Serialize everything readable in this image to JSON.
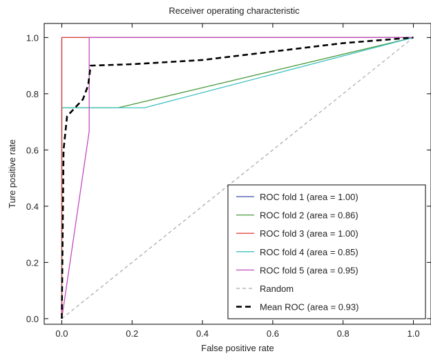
{
  "chart_data": {
    "type": "line",
    "title": "Receiver operating characteristic",
    "xlabel": "False positive rate",
    "ylabel": "Ture positive rate",
    "xlim": [
      -0.05,
      1.05
    ],
    "ylim": [
      -0.02,
      1.05
    ],
    "xticks": [
      "0.0",
      "0.2",
      "0.4",
      "0.6",
      "0.8",
      "1.0"
    ],
    "yticks": [
      "0.0",
      "0.2",
      "0.4",
      "0.6",
      "0.8",
      "1.0"
    ],
    "grid": false,
    "legend_position": "lower-right",
    "series": [
      {
        "name": "ROC fold 1 (area = 1.00)",
        "color": "#3b4ba8",
        "style": "solid",
        "points": [
          [
            0.0,
            0.0
          ],
          [
            0.0,
            1.0
          ],
          [
            1.0,
            1.0
          ]
        ]
      },
      {
        "name": "ROC fold 2 (area = 0.86)",
        "color": "#4a9a3c",
        "style": "solid",
        "points": [
          [
            0.0,
            0.0
          ],
          [
            0.0,
            0.75
          ],
          [
            0.16,
            0.75
          ],
          [
            1.0,
            1.0
          ]
        ]
      },
      {
        "name": "ROC fold 3 (area = 1.00)",
        "color": "#e8473c",
        "style": "solid",
        "points": [
          [
            0.0,
            0.0
          ],
          [
            0.0,
            1.0
          ],
          [
            0.08,
            1.0
          ],
          [
            1.0,
            1.0
          ]
        ]
      },
      {
        "name": "ROC fold 4 (area = 0.85)",
        "color": "#3cc1bf",
        "style": "solid",
        "points": [
          [
            0.0,
            0.0
          ],
          [
            0.0,
            0.75
          ],
          [
            0.235,
            0.75
          ],
          [
            1.0,
            1.0
          ]
        ]
      },
      {
        "name": "ROC fold 5 (area = 0.95)",
        "color": "#c04bc0",
        "style": "solid",
        "points": [
          [
            0.0,
            0.0
          ],
          [
            0.078,
            0.667
          ],
          [
            0.078,
            1.0
          ],
          [
            1.0,
            1.0
          ]
        ]
      },
      {
        "name": "Random",
        "color": "#a8a8a8",
        "style": "dashed",
        "points": [
          [
            0.0,
            0.0
          ],
          [
            1.0,
            1.0
          ]
        ]
      },
      {
        "name": "Mean ROC (area = 0.93)",
        "color": "#000000",
        "style": "bold-dashed",
        "points": [
          [
            0.0,
            0.0
          ],
          [
            0.005,
            0.6
          ],
          [
            0.015,
            0.72
          ],
          [
            0.06,
            0.78
          ],
          [
            0.075,
            0.83
          ],
          [
            0.082,
            0.9
          ],
          [
            0.2,
            0.905
          ],
          [
            0.4,
            0.92
          ],
          [
            0.6,
            0.95
          ],
          [
            0.8,
            0.98
          ],
          [
            1.0,
            1.0
          ]
        ]
      }
    ]
  }
}
